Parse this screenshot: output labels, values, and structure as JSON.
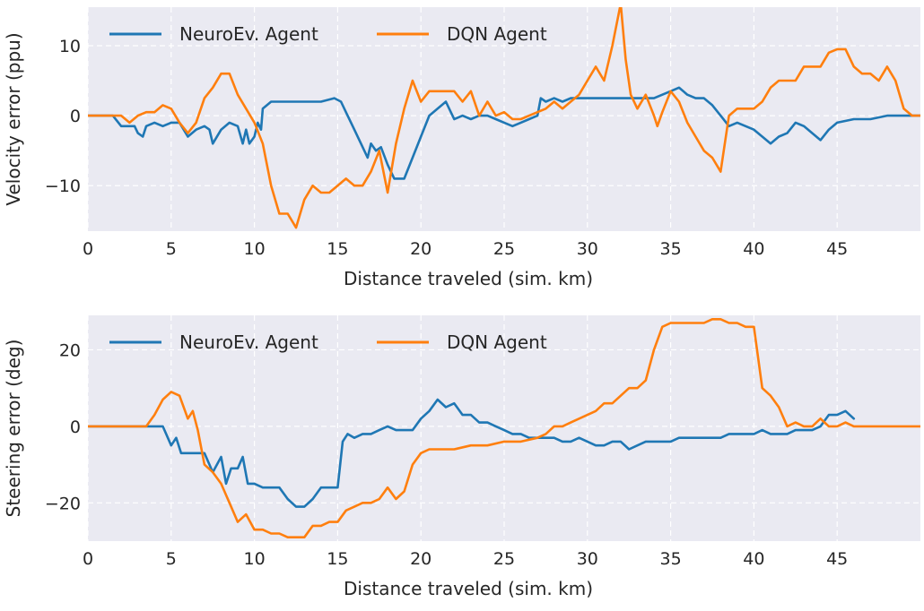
{
  "chart_data": [
    {
      "type": "line",
      "title": "",
      "xlabel": "Distance traveled (sim. km)",
      "ylabel": "Velocity error (ppu)",
      "xlim": [
        0,
        50
      ],
      "ylim": [
        -16.5,
        15.5
      ],
      "xticks": [
        0,
        5,
        10,
        15,
        20,
        25,
        30,
        35,
        40,
        45
      ],
      "xtick_labels": [
        "0",
        "5",
        "10",
        "15",
        "20",
        "25",
        "30",
        "35",
        "40",
        "45"
      ],
      "yticks": [
        -10,
        0,
        10
      ],
      "ytick_labels": [
        "−10",
        "0",
        "10"
      ],
      "grid": true,
      "legend": "top-left",
      "series": [
        {
          "name": "NeuroEv. Agent",
          "color": "#1f77b4",
          "x": [
            0,
            1.5,
            2,
            2.5,
            2.8,
            3,
            3.3,
            3.5,
            4,
            4.5,
            5,
            5.5,
            6,
            6.5,
            7,
            7.3,
            7.5,
            8,
            8.5,
            9,
            9.3,
            9.5,
            9.7,
            10,
            10.2,
            10.4,
            10.5,
            11,
            12,
            13,
            14,
            14.8,
            15.2,
            15.6,
            16,
            16.4,
            16.8,
            17,
            17.3,
            17.6,
            18,
            18.4,
            19,
            19.5,
            20,
            20.5,
            21,
            21.5,
            22,
            22.5,
            23,
            23.5,
            24,
            24.5,
            25,
            25.5,
            26,
            26.5,
            27,
            27.2,
            27.5,
            28,
            28.5,
            29,
            30,
            31,
            32,
            33,
            34,
            34.5,
            35,
            35.5,
            36,
            36.5,
            37,
            37.5,
            38,
            38.5,
            39,
            39.5,
            40,
            40.5,
            41,
            41.5,
            42,
            42.5,
            43,
            43.5,
            44,
            44.5,
            45,
            46,
            47,
            48,
            49,
            49.5,
            50
          ],
          "values": [
            0,
            0,
            -1.5,
            -1.5,
            -1.5,
            -2.5,
            -3,
            -1.5,
            -1,
            -1.5,
            -1,
            -1,
            -3,
            -2,
            -1.5,
            -2,
            -4,
            -2,
            -1,
            -1.5,
            -4,
            -2,
            -4,
            -3,
            -1,
            -2,
            1,
            2,
            2,
            2,
            2,
            2.5,
            2,
            0,
            -2,
            -4,
            -6,
            -4,
            -5,
            -4.5,
            -7,
            -9,
            -9,
            -6,
            -3,
            0,
            1,
            2,
            -0.5,
            0,
            -0.5,
            0,
            0,
            -0.5,
            -1,
            -1.5,
            -1,
            -0.5,
            0,
            2.5,
            2,
            2.5,
            2,
            2.5,
            2.5,
            2.5,
            2.5,
            2.5,
            2.5,
            3,
            3.5,
            4,
            3,
            2.5,
            2.5,
            1.5,
            0,
            -1.5,
            -1,
            -1.5,
            -2,
            -3,
            -4,
            -3,
            -2.5,
            -1,
            -1.5,
            -2.5,
            -3.5,
            -2,
            -1,
            -0.5,
            -0.5,
            0,
            0,
            0,
            0
          ]
        },
        {
          "name": "DQN Agent",
          "color": "#ff7f0e",
          "x": [
            0,
            2,
            2.5,
            3,
            3.5,
            4,
            4.5,
            5,
            5.5,
            6,
            6.5,
            7,
            7.5,
            8,
            8.5,
            9,
            9.5,
            10,
            10.5,
            11,
            11.5,
            12,
            12.5,
            13,
            13.5,
            14,
            14.5,
            15,
            15.5,
            16,
            16.5,
            17,
            17.5,
            18,
            18.5,
            19,
            19.5,
            20,
            20.5,
            21,
            21.5,
            22,
            22.5,
            23,
            23.5,
            24,
            24.5,
            25,
            25.5,
            26,
            26.5,
            27,
            27.5,
            28,
            28.5,
            29,
            29.5,
            30,
            30.5,
            31,
            31.5,
            32,
            32.3,
            32.6,
            33,
            33.5,
            34,
            34.2,
            34.5,
            35,
            35.5,
            36,
            36.5,
            37,
            37.5,
            38,
            38.5,
            39,
            39.5,
            40,
            40.5,
            41,
            41.5,
            42,
            42.5,
            43,
            43.5,
            44,
            44.5,
            45,
            45.5,
            46,
            46.5,
            47,
            47.5,
            48,
            48.5,
            49,
            49.5,
            50
          ],
          "values": [
            0,
            0,
            -1,
            0,
            0.5,
            0.5,
            1.5,
            1,
            -1,
            -2.5,
            -1,
            2.5,
            4,
            6,
            6,
            3,
            1,
            -1,
            -4,
            -10,
            -14,
            -14,
            -16,
            -12,
            -10,
            -11,
            -11,
            -10,
            -9,
            -10,
            -10,
            -8,
            -5,
            -11,
            -4,
            1,
            5,
            2,
            3.5,
            3.5,
            3.5,
            3.5,
            2,
            3.5,
            0,
            2,
            0,
            0.5,
            -0.5,
            -0.5,
            0,
            0.5,
            1,
            2,
            1,
            2,
            3,
            5,
            7,
            5,
            10,
            16,
            8,
            3,
            1,
            3,
            0,
            -1.5,
            0.5,
            3.5,
            2,
            -1,
            -3,
            -5,
            -6,
            -8,
            0,
            1,
            1,
            1,
            2,
            4,
            5,
            5,
            5,
            7,
            7,
            7,
            9,
            9.5,
            9.5,
            7,
            6,
            6,
            5,
            7,
            5,
            1,
            0,
            0
          ]
        }
      ]
    },
    {
      "type": "line",
      "title": "",
      "xlabel": "Distance traveled (sim. km)",
      "ylabel": "Steering error (deg)",
      "xlim": [
        0,
        50
      ],
      "ylim": [
        -30,
        29
      ],
      "xticks": [
        0,
        5,
        10,
        15,
        20,
        25,
        30,
        35,
        40,
        45
      ],
      "xtick_labels": [
        "0",
        "5",
        "10",
        "15",
        "20",
        "25",
        "30",
        "35",
        "40",
        "45"
      ],
      "yticks": [
        -20,
        0,
        20
      ],
      "ytick_labels": [
        "−20",
        "0",
        "20"
      ],
      "grid": true,
      "legend": "top-left",
      "series": [
        {
          "name": "NeuroEv. Agent",
          "color": "#1f77b4",
          "x": [
            0,
            4,
            4.5,
            5,
            5.3,
            5.6,
            6,
            6.5,
            7,
            7.5,
            8,
            8.3,
            8.6,
            9,
            9.3,
            9.6,
            10,
            10.5,
            11,
            11.5,
            12,
            12.5,
            13,
            13.5,
            14,
            14.5,
            14.8,
            15,
            15.3,
            15.6,
            16,
            16.5,
            17,
            17.5,
            18,
            18.5,
            19,
            19.5,
            20,
            20.5,
            21,
            21.5,
            22,
            22.5,
            23,
            23.5,
            24,
            24.5,
            25,
            25.5,
            26,
            26.5,
            27,
            27.5,
            28,
            28.5,
            29,
            29.5,
            30,
            30.5,
            31,
            31.5,
            32,
            32.5,
            33,
            33.5,
            34,
            34.5,
            35,
            35.5,
            36,
            36.5,
            37,
            37.5,
            38,
            38.5,
            39,
            39.5,
            40,
            40.5,
            41,
            41.5,
            42,
            42.5,
            43,
            43.5,
            44,
            44.5,
            45,
            45.5,
            46
          ],
          "values": [
            0,
            0,
            0,
            -5,
            -3,
            -7,
            -7,
            -7,
            -7,
            -12,
            -8,
            -15,
            -11,
            -11,
            -8,
            -15,
            -15,
            -16,
            -16,
            -16,
            -19,
            -21,
            -21,
            -19,
            -16,
            -16,
            -16,
            -16,
            -4,
            -2,
            -3,
            -2,
            -2,
            -1,
            0,
            -1,
            -1,
            -1,
            2,
            4,
            7,
            5,
            6,
            3,
            3,
            1,
            1,
            0,
            -1,
            -2,
            -2,
            -3,
            -3,
            -3,
            -3,
            -4,
            -4,
            -3,
            -4,
            -5,
            -5,
            -4,
            -4,
            -6,
            -5,
            -4,
            -4,
            -4,
            -4,
            -3,
            -3,
            -3,
            -3,
            -3,
            -3,
            -2,
            -2,
            -2,
            -2,
            -1,
            -2,
            -2,
            -2,
            -1,
            -1,
            -1,
            0,
            3,
            3,
            4,
            2
          ]
        },
        {
          "name": "DQN Agent",
          "color": "#ff7f0e",
          "x": [
            0,
            3.5,
            4,
            4.5,
            5,
            5.5,
            6,
            6.3,
            6.6,
            7,
            7.5,
            8,
            8.5,
            9,
            9.5,
            10,
            10.5,
            11,
            11.5,
            12,
            12.5,
            13,
            13.5,
            14,
            14.5,
            15,
            15.5,
            16,
            16.5,
            17,
            17.5,
            18,
            18.5,
            19,
            19.5,
            20,
            20.5,
            21,
            22,
            23,
            24,
            25,
            26,
            27,
            27.5,
            28,
            28.5,
            29,
            29.5,
            30,
            30.5,
            31,
            31.5,
            32,
            32.5,
            33,
            33.5,
            34,
            34.5,
            35,
            35.5,
            36,
            36.5,
            37,
            37.5,
            38,
            38.5,
            39,
            39.5,
            40,
            40.5,
            41,
            41.5,
            42,
            42.5,
            43,
            43.5,
            44,
            44.5,
            45,
            45.5,
            46,
            50
          ],
          "values": [
            0,
            0,
            3,
            7,
            9,
            8,
            2,
            4,
            -1,
            -10,
            -12,
            -15,
            -20,
            -25,
            -23,
            -27,
            -27,
            -28,
            -28,
            -29,
            -29,
            -29,
            -26,
            -26,
            -25,
            -25,
            -22,
            -21,
            -20,
            -20,
            -19,
            -16,
            -19,
            -17,
            -10,
            -7,
            -6,
            -6,
            -6,
            -5,
            -5,
            -4,
            -4,
            -3,
            -2,
            0,
            0,
            1,
            2,
            3,
            4,
            6,
            6,
            8,
            10,
            10,
            12,
            20,
            26,
            27,
            27,
            27,
            27,
            27,
            28,
            28,
            27,
            27,
            26,
            26,
            10,
            8,
            5,
            0,
            1,
            0,
            0,
            2,
            0,
            0,
            1,
            0,
            0
          ]
        }
      ]
    }
  ]
}
